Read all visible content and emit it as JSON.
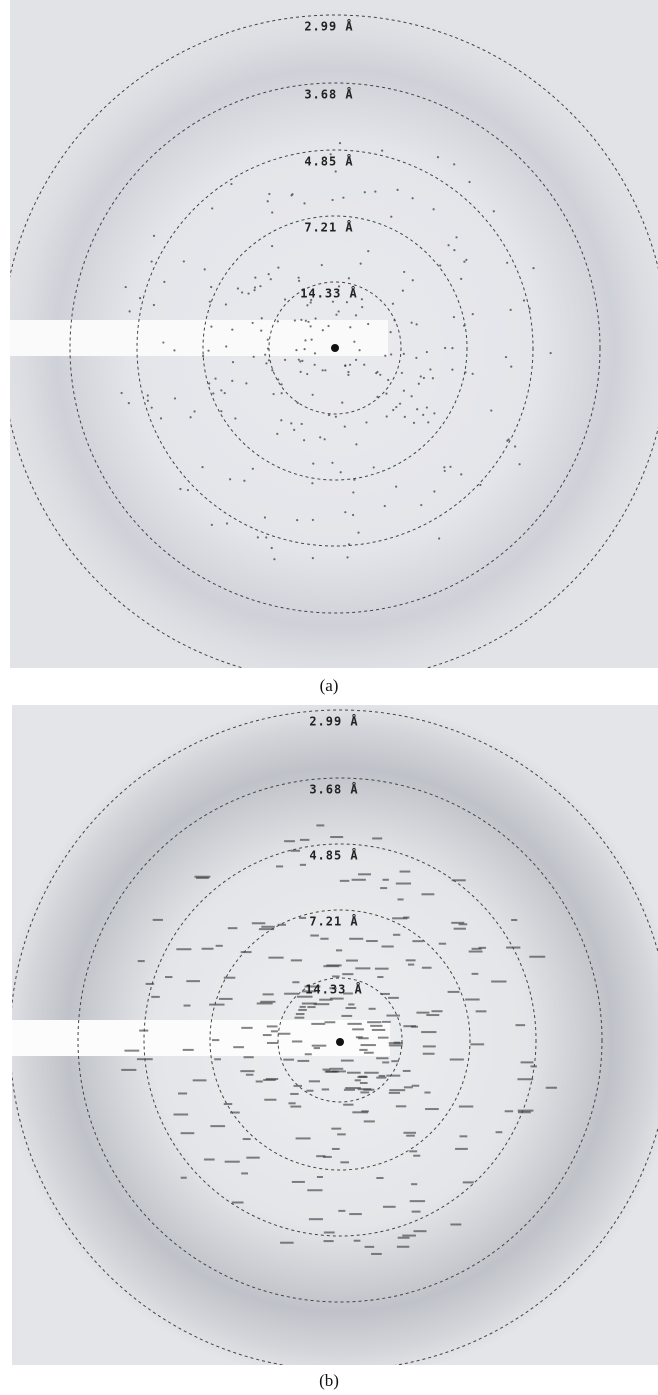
{
  "panels": [
    {
      "rings": [
        "14.33 Å",
        "7.21 Å",
        "4.85 Å",
        "3.68 Å",
        "2.99 Å"
      ],
      "caption": "(a)"
    },
    {
      "rings": [
        "14.33 Å",
        "7.21 Å",
        "4.85 Å",
        "3.68 Å",
        "2.99 Å"
      ],
      "caption": "(b)"
    }
  ]
}
